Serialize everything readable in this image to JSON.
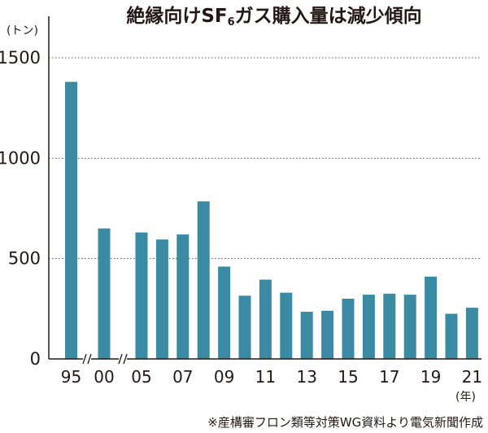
{
  "chart_data": {
    "type": "bar",
    "title": "絶縁向けSF₆ガス購入量は減少傾向",
    "title_parts": {
      "before": "絶縁向けSF",
      "subscript": "6",
      "after": "ガス購入量は減少傾向"
    },
    "ylabel": "(トン)",
    "xlabel": "(年)",
    "ylim": [
      0,
      1500
    ],
    "y_ticks": [
      "0",
      "500",
      "1000",
      "1500"
    ],
    "y_tick_values": [
      0,
      500,
      1000,
      1500
    ],
    "grid": "horizontal-dotted",
    "axis_breaks": [
      "95-00",
      "00-05"
    ],
    "categories": [
      "95",
      "00",
      "05",
      "06",
      "07",
      "08",
      "09",
      "10",
      "11",
      "12",
      "13",
      "14",
      "15",
      "16",
      "17",
      "18",
      "19",
      "20",
      "21"
    ],
    "x_tick_labels": [
      "95",
      "00",
      "05",
      "07",
      "09",
      "11",
      "13",
      "15",
      "17",
      "19",
      "21"
    ],
    "values": [
      1380,
      650,
      630,
      595,
      620,
      785,
      460,
      315,
      395,
      330,
      235,
      240,
      300,
      320,
      325,
      320,
      410,
      225,
      255
    ],
    "bar_color": "#3a8aa4",
    "source": "※産構審フロン類等対策WG資料より電気新聞作成"
  }
}
